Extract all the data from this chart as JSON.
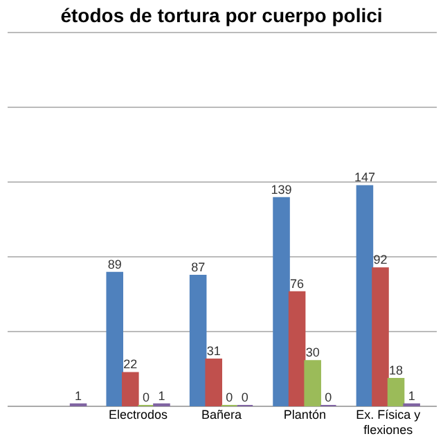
{
  "chart_data": {
    "type": "bar",
    "title": "étodos de tortura por cuerpo polici",
    "categories": [
      null,
      "Electrodos",
      "Bañera",
      "Plantón",
      "Ex. Física y flexiones"
    ],
    "series": [
      {
        "color": "#4f81bd",
        "values": [
          null,
          89,
          87,
          139,
          147
        ]
      },
      {
        "color": "#c0504d",
        "values": [
          null,
          22,
          31,
          76,
          92
        ]
      },
      {
        "color": "#9bbb59",
        "values": [
          null,
          0,
          0,
          30,
          18
        ]
      },
      {
        "color": "#8064a2",
        "values": [
          1,
          1,
          0,
          0,
          1
        ]
      }
    ],
    "ylim": [
      0,
      250
    ],
    "yticks": [
      0,
      50,
      100,
      150,
      200,
      250
    ],
    "grid": "y",
    "tick_labels": "x",
    "data_labels": true,
    "legend": false
  }
}
